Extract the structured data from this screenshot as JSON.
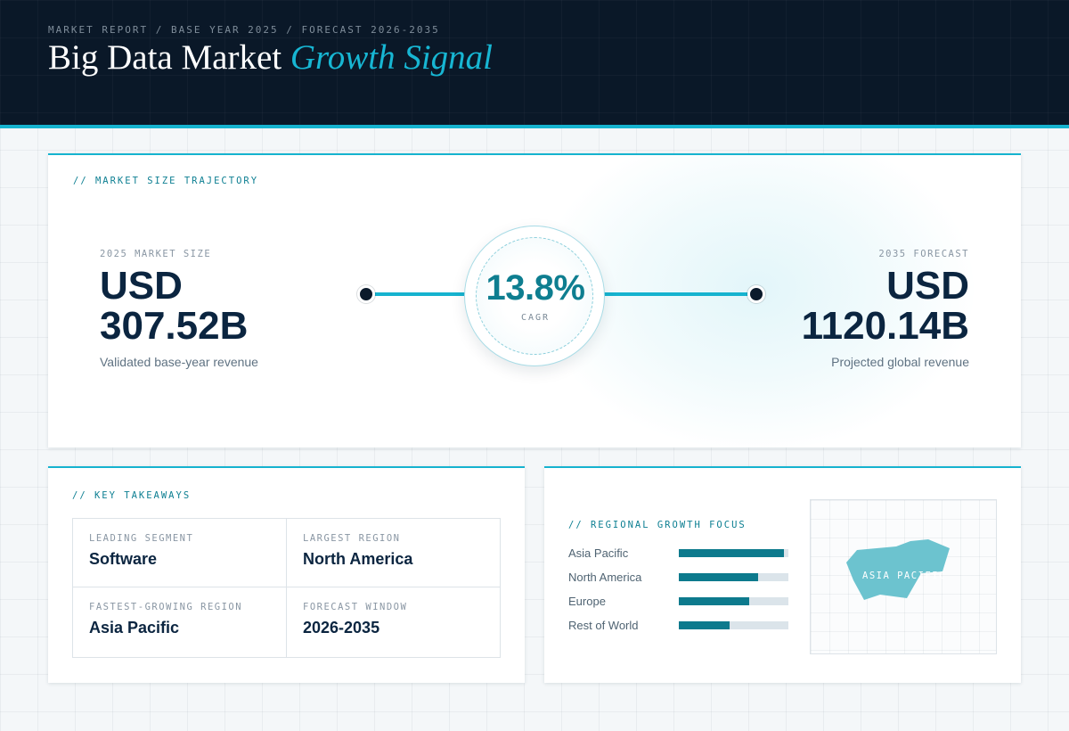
{
  "header": {
    "eyebrow": "MARKET REPORT / BASE YEAR 2025 / FORECAST 2026-2035",
    "title_main": "Big Data Market",
    "title_accent": "Growth Signal"
  },
  "trajectory": {
    "label": "// MARKET SIZE TRAJECTORY",
    "start": {
      "label": "2025 MARKET SIZE",
      "currency": "USD",
      "value": "307.52B",
      "caption": "Validated base-year revenue"
    },
    "end": {
      "label": "2035 FORECAST",
      "currency": "USD",
      "value": "1120.14B",
      "caption": "Projected global revenue"
    },
    "cagr": {
      "value": "13.8%",
      "label": "CAGR"
    }
  },
  "takeaways": {
    "label": "// KEY TAKEAWAYS",
    "items": [
      {
        "label": "LEADING SEGMENT",
        "value": "Software"
      },
      {
        "label": "LARGEST REGION",
        "value": "North America"
      },
      {
        "label": "FASTEST-GROWING REGION",
        "value": "Asia Pacific"
      },
      {
        "label": "FORECAST WINDOW",
        "value": "2026-2035"
      }
    ]
  },
  "regional": {
    "label": "// REGIONAL GROWTH FOCUS",
    "bars": [
      {
        "name": "Asia Pacific",
        "level": 0.96
      },
      {
        "name": "North America",
        "level": 0.72
      },
      {
        "name": "Europe",
        "level": 0.64
      },
      {
        "name": "Rest of World",
        "level": 0.46
      }
    ],
    "map_label": "ASIA PACIFIC"
  },
  "colors": {
    "accent": "#16b3cf",
    "accent_dark": "#0d7a8d",
    "navy": "#0b2540",
    "header_bg": "#0a1828"
  }
}
